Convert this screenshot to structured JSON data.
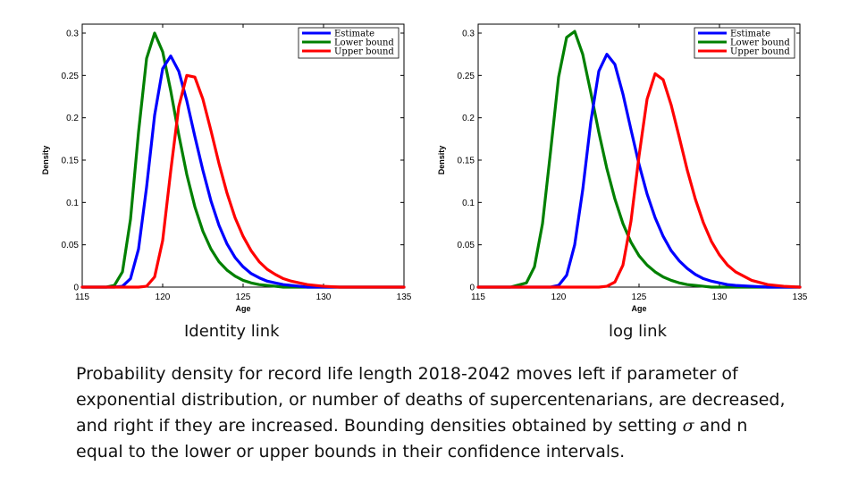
{
  "charts": [
    {
      "caption": "Identity link"
    },
    {
      "caption": "log link"
    }
  ],
  "description": {
    "line1": "Probability density for record life length 2018-2042 moves left if parameter  of",
    "line2": "exponential distribution, or number of deaths of supercentenarians, are decreased,",
    "line3a": "and right if they are increased. Bounding densities obtained by setting ",
    "sigma": "σ",
    "line3b": "  and n",
    "line4": "equal to the lower or upper bounds in their confidence intervals."
  },
  "colors": {
    "estimate": "#0000ff",
    "lower": "#008000",
    "upper": "#ff0000"
  },
  "chart_data": [
    {
      "type": "line",
      "title": "",
      "xlabel": "Age",
      "ylabel": "Density",
      "xlim": [
        115,
        135
      ],
      "ylim": [
        0,
        0.3
      ],
      "xticks": [
        "115",
        "120",
        "125",
        "130",
        "135"
      ],
      "yticks": [
        "0",
        "0.05",
        "0.1",
        "0.15",
        "0.2",
        "0.25",
        "0.3"
      ],
      "legend_position": "top-right",
      "x": [
        115,
        116,
        116.5,
        117,
        117.5,
        118,
        118.5,
        119,
        119.5,
        120,
        120.5,
        121,
        121.5,
        122,
        122.5,
        123,
        123.5,
        124,
        124.5,
        125,
        125.5,
        126,
        126.5,
        127,
        127.5,
        128,
        128.5,
        129,
        130,
        131,
        132,
        133,
        134,
        135
      ],
      "series": [
        {
          "name": "Estimate",
          "color": "#0000ff",
          "values": [
            0,
            0,
            0,
            0,
            0.001,
            0.01,
            0.045,
            0.118,
            0.203,
            0.258,
            0.273,
            0.255,
            0.22,
            0.178,
            0.138,
            0.102,
            0.073,
            0.051,
            0.035,
            0.024,
            0.016,
            0.011,
            0.007,
            0.005,
            0.003,
            0.002,
            0.001,
            0,
            0,
            0,
            0,
            0,
            0,
            0
          ]
        },
        {
          "name": "Lower bound",
          "color": "#008000",
          "values": [
            0,
            0,
            0,
            0.002,
            0.018,
            0.08,
            0.183,
            0.27,
            0.3,
            0.278,
            0.232,
            0.18,
            0.133,
            0.095,
            0.066,
            0.045,
            0.03,
            0.02,
            0.013,
            0.008,
            0.005,
            0.003,
            0.002,
            0.001,
            0,
            0,
            0,
            0,
            0,
            0,
            0,
            0,
            0,
            0
          ]
        },
        {
          "name": "Upper bound",
          "color": "#ff0000",
          "values": [
            0,
            0,
            0,
            0,
            0,
            0,
            0,
            0.001,
            0.012,
            0.055,
            0.137,
            0.213,
            0.25,
            0.248,
            0.222,
            0.185,
            0.146,
            0.111,
            0.082,
            0.06,
            0.043,
            0.03,
            0.021,
            0.015,
            0.01,
            0.007,
            0.005,
            0.003,
            0.001,
            0,
            0,
            0,
            0,
            0
          ]
        }
      ]
    },
    {
      "type": "line",
      "title": "",
      "xlabel": "Age",
      "ylabel": "Density",
      "xlim": [
        115,
        135
      ],
      "ylim": [
        0,
        0.3
      ],
      "xticks": [
        "115",
        "120",
        "125",
        "130",
        "135"
      ],
      "yticks": [
        "0",
        "0.05",
        "0.1",
        "0.15",
        "0.2",
        "0.25",
        "0.3"
      ],
      "legend_position": "top-right",
      "x": [
        115,
        116,
        117,
        118,
        118.5,
        119,
        119.5,
        120,
        120.5,
        121,
        121.5,
        122,
        122.5,
        123,
        123.5,
        124,
        124.5,
        125,
        125.5,
        126,
        126.5,
        127,
        127.5,
        128,
        128.5,
        129,
        129.5,
        130,
        130.5,
        131,
        132,
        133,
        134,
        135
      ],
      "series": [
        {
          "name": "Estimate",
          "color": "#0000ff",
          "values": [
            0,
            0,
            0,
            0,
            0,
            0,
            0,
            0.002,
            0.014,
            0.05,
            0.115,
            0.195,
            0.255,
            0.275,
            0.263,
            0.228,
            0.186,
            0.145,
            0.11,
            0.082,
            0.06,
            0.043,
            0.031,
            0.022,
            0.015,
            0.01,
            0.007,
            0.005,
            0.003,
            0.002,
            0.001,
            0,
            0,
            0
          ]
        },
        {
          "name": "Lower bound",
          "color": "#008000",
          "values": [
            0,
            0,
            0,
            0.005,
            0.024,
            0.075,
            0.16,
            0.248,
            0.295,
            0.302,
            0.275,
            0.23,
            0.183,
            0.14,
            0.104,
            0.075,
            0.053,
            0.037,
            0.026,
            0.018,
            0.012,
            0.008,
            0.005,
            0.003,
            0.002,
            0.001,
            0,
            0,
            0,
            0,
            0,
            0,
            0,
            0
          ]
        },
        {
          "name": "Upper bound",
          "color": "#ff0000",
          "values": [
            0,
            0,
            0,
            0,
            0,
            0,
            0,
            0,
            0,
            0,
            0,
            0,
            0,
            0.001,
            0.006,
            0.026,
            0.078,
            0.155,
            0.222,
            0.252,
            0.245,
            0.215,
            0.177,
            0.138,
            0.104,
            0.076,
            0.054,
            0.038,
            0.026,
            0.018,
            0.008,
            0.003,
            0.001,
            0
          ]
        }
      ]
    }
  ]
}
